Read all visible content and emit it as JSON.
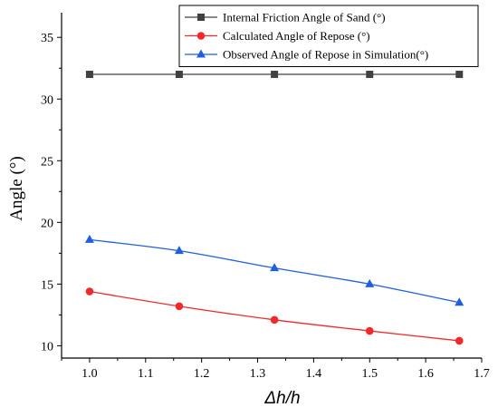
{
  "chart_data": {
    "type": "line",
    "title": "",
    "xlabel": "Δh/h",
    "ylabel": "Angle (°)",
    "xlim": [
      0.95,
      1.7
    ],
    "ylim": [
      9,
      37
    ],
    "xticks": [
      "1.0",
      "1.1",
      "1.2",
      "1.3",
      "1.4",
      "1.5",
      "1.6",
      "1.7"
    ],
    "yticks": [
      "10",
      "15",
      "20",
      "25",
      "30",
      "35"
    ],
    "xtick_values": [
      1.0,
      1.1,
      1.2,
      1.3,
      1.4,
      1.5,
      1.6,
      1.7
    ],
    "ytick_values": [
      10,
      15,
      20,
      25,
      30,
      35
    ],
    "legend_position": "top-right",
    "grid": false,
    "series": [
      {
        "name": "Internal Friction Angle of Sand (°)",
        "marker": "square",
        "color": "#404040",
        "x": [
          1.0,
          1.16,
          1.33,
          1.5,
          1.66
        ],
        "values": [
          32,
          32,
          32,
          32,
          32
        ]
      },
      {
        "name": "Calculated Angle of Repose (°)",
        "marker": "circle",
        "color": "#f0292b",
        "x": [
          1.0,
          1.16,
          1.33,
          1.5,
          1.66
        ],
        "values": [
          14.4,
          13.2,
          12.1,
          11.2,
          10.4
        ]
      },
      {
        "name": "Observed Angle of Repose in Simulation(°)",
        "marker": "triangle",
        "color": "#1f5fe0",
        "x": [
          1.0,
          1.16,
          1.33,
          1.5,
          1.66
        ],
        "values": [
          18.6,
          17.7,
          16.3,
          15.0,
          13.5
        ]
      }
    ]
  }
}
